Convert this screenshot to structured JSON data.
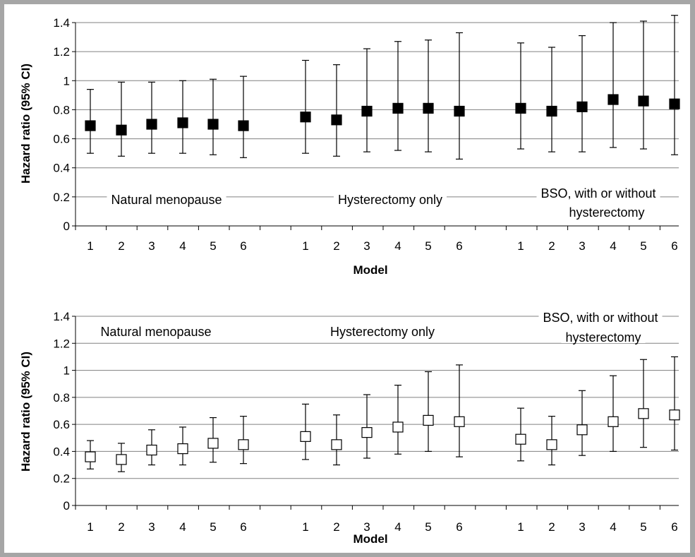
{
  "chart_data": [
    {
      "type": "scatter",
      "marker": "filled-square",
      "error_bars": true,
      "ylabel": "Hazard ratio (95% CI)",
      "xlabel": "Model",
      "ylim": [
        0,
        1.4
      ],
      "yticks": [
        0,
        0.2,
        0.4,
        0.6,
        0.8,
        1,
        1.2,
        1.4
      ],
      "ytick_labels": [
        "0",
        "0.2",
        "0.4",
        "0.6",
        "0.8",
        "1",
        "1.2",
        "1.4"
      ],
      "grid": "horizontal",
      "groups": [
        {
          "label": "Natural menopause",
          "models": [
            "1",
            "2",
            "3",
            "4",
            "5",
            "6"
          ],
          "hr": [
            0.69,
            0.66,
            0.7,
            0.71,
            0.7,
            0.69
          ],
          "ci_lower": [
            0.5,
            0.48,
            0.5,
            0.5,
            0.49,
            0.47
          ],
          "ci_upper": [
            0.94,
            0.99,
            0.99,
            1.0,
            1.01,
            1.03
          ]
        },
        {
          "label": "Hysterectomy only",
          "models": [
            "1",
            "2",
            "3",
            "4",
            "5",
            "6"
          ],
          "hr": [
            0.75,
            0.73,
            0.79,
            0.81,
            0.81,
            0.79
          ],
          "ci_lower": [
            0.5,
            0.48,
            0.51,
            0.52,
            0.51,
            0.46
          ],
          "ci_upper": [
            1.14,
            1.11,
            1.22,
            1.27,
            1.28,
            1.33
          ]
        },
        {
          "label": "BSO, with or without hysterectomy",
          "label_lines": [
            "BSO, with or without",
            "hysterectomy"
          ],
          "models": [
            "1",
            "2",
            "3",
            "4",
            "5",
            "6"
          ],
          "hr": [
            0.81,
            0.79,
            0.82,
            0.87,
            0.86,
            0.84
          ],
          "ci_lower": [
            0.53,
            0.51,
            0.51,
            0.54,
            0.53,
            0.49
          ],
          "ci_upper": [
            1.26,
            1.23,
            1.31,
            1.4,
            1.41,
            1.45
          ]
        }
      ]
    },
    {
      "type": "scatter",
      "marker": "open-square",
      "error_bars": true,
      "ylabel": "Hazard ratio (95% CI)",
      "xlabel": "Model",
      "ylim": [
        0,
        1.4
      ],
      "yticks": [
        0,
        0.2,
        0.4,
        0.6,
        0.8,
        1,
        1.2,
        1.4
      ],
      "ytick_labels": [
        "0",
        "0.2",
        "0.4",
        "0.6",
        "0.8",
        "1",
        "1.2",
        "1.4"
      ],
      "grid": "horizontal",
      "groups": [
        {
          "label": "Natural menopause",
          "models": [
            "1",
            "2",
            "3",
            "4",
            "5",
            "6"
          ],
          "hr": [
            0.36,
            0.34,
            0.41,
            0.42,
            0.46,
            0.45
          ],
          "ci_lower": [
            0.27,
            0.25,
            0.3,
            0.3,
            0.32,
            0.31
          ],
          "ci_upper": [
            0.48,
            0.46,
            0.56,
            0.58,
            0.65,
            0.66
          ]
        },
        {
          "label": "Hysterectomy only",
          "models": [
            "1",
            "2",
            "3",
            "4",
            "5",
            "6"
          ],
          "hr": [
            0.51,
            0.45,
            0.54,
            0.58,
            0.63,
            0.62
          ],
          "ci_lower": [
            0.34,
            0.3,
            0.35,
            0.38,
            0.4,
            0.36
          ],
          "ci_upper": [
            0.75,
            0.67,
            0.82,
            0.89,
            0.99,
            1.04
          ]
        },
        {
          "label": "BSO, with or without hysterectomy",
          "label_lines": [
            "BSO, with or without",
            "hysterectomy"
          ],
          "models": [
            "1",
            "2",
            "3",
            "4",
            "5",
            "6"
          ],
          "hr": [
            0.49,
            0.45,
            0.56,
            0.62,
            0.68,
            0.67
          ],
          "ci_lower": [
            0.33,
            0.3,
            0.37,
            0.4,
            0.43,
            0.41
          ],
          "ci_upper": [
            0.72,
            0.66,
            0.85,
            0.96,
            1.08,
            1.1
          ]
        }
      ]
    }
  ]
}
